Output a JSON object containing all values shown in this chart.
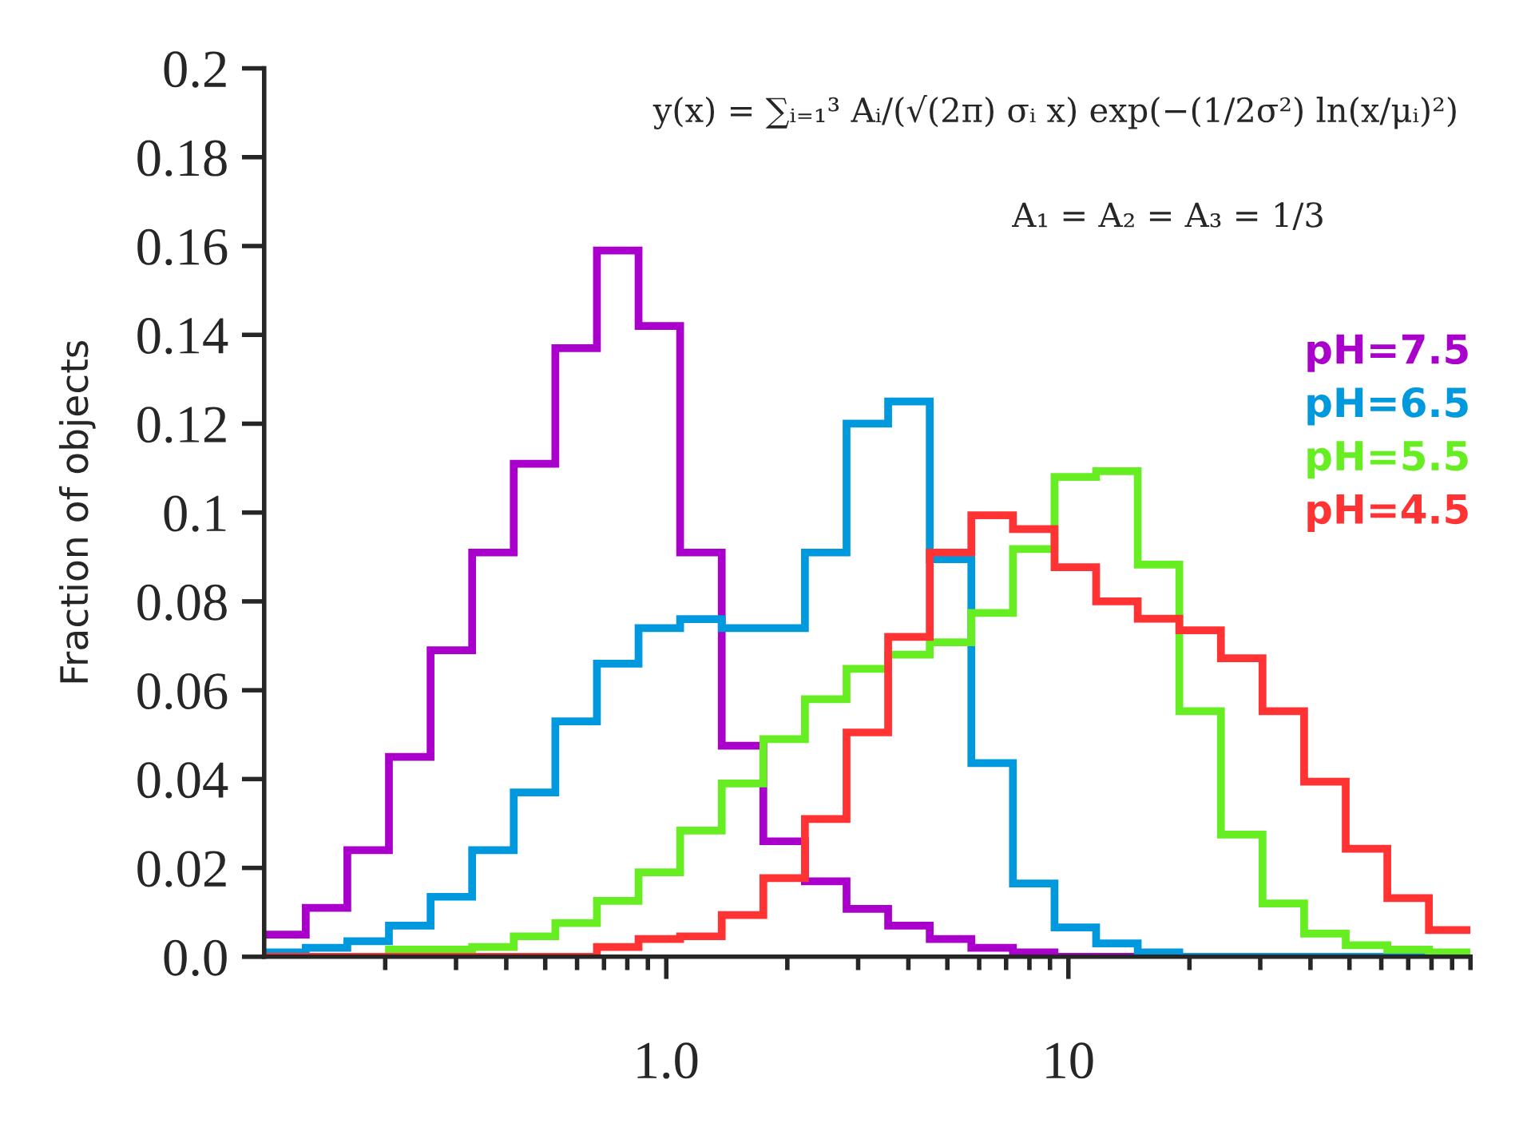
{
  "chart_data": {
    "type": "histogram",
    "ylabel": "Fraction of objects",
    "annotations": [
      "y(x) = ∑ᵢ₌₁³ Aᵢ/(√(2π) σᵢ x) exp(−(1/2σ²) ln(x/μᵢ)²)",
      "A₁ = A₂ = A₃ = 1/3"
    ],
    "bins": [
      0.1,
      0.1269,
      0.161,
      0.2043,
      0.2593,
      0.329,
      0.4175,
      0.5298,
      0.6723,
      0.8532,
      1.0826,
      1.3738,
      1.7433,
      2.2122,
      2.8072,
      3.5622,
      4.5204,
      5.7362,
      7.279,
      9.2367,
      11.721,
      14.874,
      18.874,
      23.951,
      30.393,
      38.568,
      48.941,
      62.105,
      78.809,
      100
    ],
    "series": [
      {
        "name": "pH=7.5",
        "color": "#aa00cc",
        "values": [
          0.005,
          0.011,
          0.024,
          0.045,
          0.069,
          0.091,
          0.111,
          0.137,
          0.159,
          0.142,
          0.091,
          0.0475,
          0.026,
          0.017,
          0.0108,
          0.007,
          0.004,
          0.002,
          0.001,
          0,
          0,
          0,
          0,
          0,
          0,
          0,
          0,
          0,
          0
        ]
      },
      {
        "name": "pH=6.5",
        "color": "#0099dd",
        "values": [
          0.001,
          0.002,
          0.0035,
          0.007,
          0.0135,
          0.024,
          0.037,
          0.053,
          0.066,
          0.074,
          0.076,
          0.074,
          0.074,
          0.091,
          0.12,
          0.125,
          0.0895,
          0.0436,
          0.0165,
          0.0066,
          0.003,
          0.001,
          0,
          0,
          0,
          0,
          0,
          0,
          0
        ]
      },
      {
        "name": "pH=5.5",
        "color": "#66ee22",
        "values": [
          0,
          0,
          0,
          0.0016,
          0.0016,
          0.0022,
          0.0046,
          0.0076,
          0.0126,
          0.019,
          0.0284,
          0.039,
          0.049,
          0.058,
          0.0648,
          0.068,
          0.0708,
          0.0774,
          0.0918,
          0.108,
          0.1093,
          0.0883,
          0.0553,
          0.0275,
          0.012,
          0.0052,
          0.0026,
          0.0016,
          0.001
        ]
      },
      {
        "name": "pH=4.5",
        "color": "#ff3333",
        "values": [
          0,
          0,
          0,
          0,
          0,
          0,
          0,
          0,
          0.0022,
          0.004,
          0.0046,
          0.0094,
          0.0177,
          0.031,
          0.0505,
          0.072,
          0.091,
          0.0994,
          0.0963,
          0.0877,
          0.08,
          0.0761,
          0.0735,
          0.0672,
          0.0553,
          0.0394,
          0.0243,
          0.0132,
          0.006
        ]
      }
    ],
    "log": "x",
    "xlim": [
      0.1,
      100
    ],
    "xticks": [
      {
        "value": 0.2,
        "label": null
      },
      {
        "value": 0.3,
        "label": null
      },
      {
        "value": 0.4,
        "label": null
      },
      {
        "value": 0.5,
        "label": null
      },
      {
        "value": 0.6,
        "label": null
      },
      {
        "value": 0.7,
        "label": null
      },
      {
        "value": 0.8,
        "label": null
      },
      {
        "value": 0.9,
        "label": null
      },
      {
        "value": 1,
        "label": "1.0"
      },
      {
        "value": 2,
        "label": null
      },
      {
        "value": 3,
        "label": null
      },
      {
        "value": 4,
        "label": null
      },
      {
        "value": 5,
        "label": null
      },
      {
        "value": 6,
        "label": null
      },
      {
        "value": 7,
        "label": null
      },
      {
        "value": 8,
        "label": null
      },
      {
        "value": 9,
        "label": null
      },
      {
        "value": 10,
        "label": "10"
      },
      {
        "value": 20,
        "label": null
      },
      {
        "value": 30,
        "label": null
      },
      {
        "value": 40,
        "label": null
      },
      {
        "value": 50,
        "label": null
      },
      {
        "value": 60,
        "label": null
      },
      {
        "value": 70,
        "label": null
      },
      {
        "value": 80,
        "label": null
      },
      {
        "value": 90,
        "label": null
      },
      {
        "value": 100,
        "label": null
      }
    ],
    "ylim": [
      0,
      0.2
    ],
    "yticks": [
      {
        "value": 0,
        "label": "0.0"
      },
      0.02,
      0.04,
      0.06,
      0.08,
      0.1,
      0.12,
      0.14,
      0.16,
      0.18,
      0.2
    ],
    "grid": false,
    "legend": "right"
  }
}
